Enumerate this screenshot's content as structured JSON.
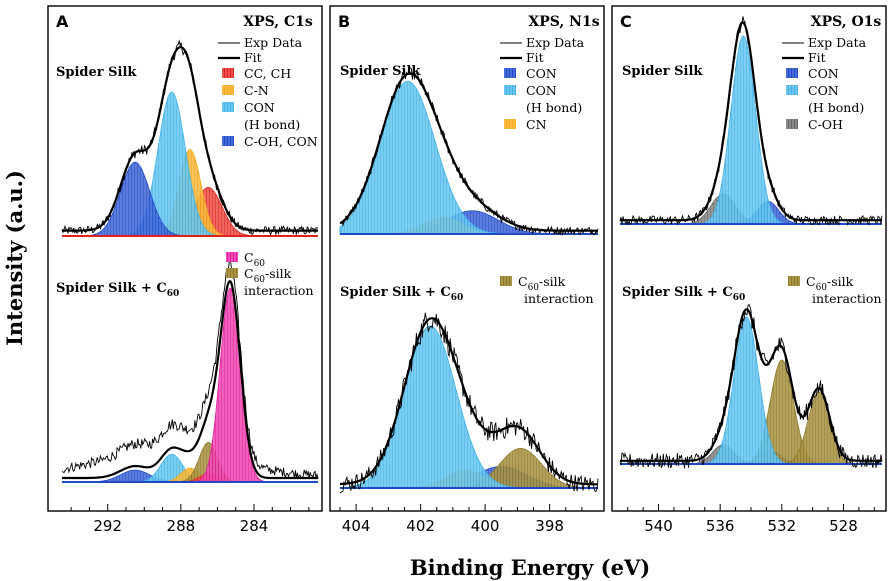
{
  "figure": {
    "y_axis_label": "Intensity (a.u.)",
    "x_axis_label": "Binding Energy (eV)"
  },
  "chart_data": [
    {
      "type": "line",
      "panel_letter": "A",
      "title": "XPS, C1s",
      "xlabel": "Binding Energy (eV)",
      "ylabel": "Intensity (a.u.)",
      "xlim": [
        294.5,
        280.5
      ],
      "x_ticks": [
        292,
        288,
        284
      ],
      "upper": {
        "sample_label": "Spider Silk",
        "baseline": 0.03,
        "fit_components": [
          {
            "name": "CC, CH",
            "center": 286.5,
            "height": 0.27,
            "width": 0.75,
            "color": "#e0221f",
            "hatch": "#ff9a8e"
          },
          {
            "name": "C-N",
            "center": 287.5,
            "height": 0.48,
            "width": 0.6,
            "color": "#f3a81d",
            "hatch": "#ffd87a"
          },
          {
            "name": "CON (H bond)",
            "center": 288.5,
            "height": 0.8,
            "width": 0.75,
            "color": "#41b4e6",
            "hatch": "#a8e2ff"
          },
          {
            "name": "C-OH, CON",
            "center": 290.5,
            "height": 0.41,
            "width": 0.8,
            "color": "#1f49c8",
            "hatch": "#7f9ff0"
          }
        ]
      },
      "lower": {
        "sample_label_prefix": "Spider Silk + C",
        "sample_label_sub": "60",
        "baseline": 0.02,
        "fit_components": [
          {
            "name": "C-OH, CON",
            "center": 290.5,
            "height": 0.06,
            "width": 0.8,
            "color": "#1f49c8",
            "hatch": "#7f9ff0"
          },
          {
            "name": "CON (H bond)",
            "center": 288.5,
            "height": 0.14,
            "width": 0.6,
            "color": "#41b4e6",
            "hatch": "#a8e2ff"
          },
          {
            "name": "C-N",
            "center": 287.5,
            "height": 0.07,
            "width": 0.5,
            "color": "#f3a81d",
            "hatch": "#ffd87a"
          },
          {
            "name": "C60-silk interaction",
            "center": 286.5,
            "height": 0.2,
            "width": 0.5,
            "color": "#8f7a2c",
            "hatch": "#d1bb6a"
          },
          {
            "name": "CC, CH",
            "center": 286.5,
            "height": 0.04,
            "width": 0.5,
            "color": "#e0221f",
            "hatch": "#ff9a8e"
          },
          {
            "name": "C60",
            "center": 285.3,
            "height": 0.98,
            "width": 0.55,
            "color": "#e31f9b",
            "hatch": "#ff8fd8"
          }
        ],
        "exp_tail": {
          "center": 289.0,
          "height": 0.12,
          "width": 4.0
        }
      },
      "legend_upper": [
        "Exp Data",
        "Fit",
        "CC, CH",
        "C-N",
        "CON",
        "(H bond)",
        "C-OH, CON"
      ],
      "legend_lower": [
        "C60",
        "C60-silk",
        "interaction"
      ]
    },
    {
      "type": "line",
      "panel_letter": "B",
      "title": "XPS, N1s",
      "xlabel": "Binding Energy (eV)",
      "ylabel": "Intensity (a.u.)",
      "xlim": [
        404.5,
        396.5
      ],
      "x_ticks": [
        404,
        402,
        400,
        398
      ],
      "upper": {
        "sample_label": "Spider Silk",
        "baseline": 0.02,
        "fit_components": [
          {
            "name": "CON",
            "center": 400.4,
            "height": 0.14,
            "width": 0.8,
            "color": "#1f49c8",
            "hatch": "#7f9ff0"
          },
          {
            "name": "CN",
            "center": 401.3,
            "height": 0.1,
            "width": 0.6,
            "color": "#f3a81d",
            "hatch": "#ffd87a"
          },
          {
            "name": "CON (H bond)",
            "center": 402.4,
            "height": 0.92,
            "width": 0.85,
            "color": "#41b4e6",
            "hatch": "#a8e2ff"
          }
        ]
      },
      "lower": {
        "sample_label_prefix": "Spider Silk + C",
        "sample_label_sub": "60",
        "baseline": 0.02,
        "fit_components": [
          {
            "name": "CON",
            "center": 399.5,
            "height": 0.12,
            "width": 0.8,
            "color": "#1f49c8",
            "hatch": "#7f9ff0"
          },
          {
            "name": "CN",
            "center": 400.6,
            "height": 0.1,
            "width": 0.6,
            "color": "#f3a81d",
            "hatch": "#ffd87a"
          },
          {
            "name": "C60-silk interaction",
            "center": 398.9,
            "height": 0.22,
            "width": 0.65,
            "color": "#8f7a2c",
            "hatch": "#d1bb6a"
          },
          {
            "name": "CON (H bond)",
            "center": 401.7,
            "height": 0.9,
            "width": 0.8,
            "color": "#41b4e6",
            "hatch": "#a8e2ff"
          }
        ]
      },
      "legend_upper": [
        "Exp Data",
        "Fit",
        "CON",
        "CON",
        "(H bond)",
        "CN"
      ],
      "legend_lower": [
        "C60-silk",
        "interaction"
      ]
    },
    {
      "type": "line",
      "panel_letter": "C",
      "title": "XPS, O1s",
      "xlabel": "Binding Energy (eV)",
      "ylabel": "Intensity (a.u.)",
      "xlim": [
        542.5,
        525.5
      ],
      "x_ticks": [
        540,
        536,
        532,
        528
      ],
      "upper": {
        "sample_label": "Spider Silk",
        "baseline": 0.02,
        "fit_components": [
          {
            "name": "C-OH",
            "center": 535.8,
            "height": 0.16,
            "width": 0.8,
            "color": "#666666",
            "hatch": "#bbbbbb"
          },
          {
            "name": "CON",
            "center": 532.9,
            "height": 0.12,
            "width": 0.7,
            "color": "#1f49c8",
            "hatch": "#7f9ff0"
          },
          {
            "name": "CON (H bond)",
            "center": 534.5,
            "height": 1.0,
            "width": 0.8,
            "color": "#41b4e6",
            "hatch": "#a8e2ff"
          }
        ]
      },
      "lower": {
        "sample_label_prefix": "Spider Silk + C",
        "sample_label_sub": "60",
        "baseline": 0.02,
        "fit_components": [
          {
            "name": "C-OH",
            "center": 535.8,
            "height": 0.12,
            "width": 0.7,
            "color": "#666666",
            "hatch": "#bbbbbb"
          },
          {
            "name": "CON",
            "center": 532.8,
            "height": 0.09,
            "width": 0.7,
            "color": "#1f49c8",
            "hatch": "#7f9ff0"
          },
          {
            "name": "C60-silk interaction",
            "center": 532.0,
            "height": 0.65,
            "width": 0.75,
            "color": "#8f7a2c",
            "hatch": "#d1bb6a"
          },
          {
            "name": "C60-silk interaction",
            "center": 529.6,
            "height": 0.45,
            "width": 0.7,
            "color": "#8f7a2c",
            "hatch": "#d1bb6a"
          },
          {
            "name": "CON (H bond)",
            "center": 534.3,
            "height": 0.92,
            "width": 0.8,
            "color": "#41b4e6",
            "hatch": "#a8e2ff"
          }
        ]
      },
      "legend_upper": [
        "Exp Data",
        "Fit",
        "CON",
        "CON",
        "(H bond)",
        "C-OH"
      ],
      "legend_lower": [
        "C60-silk",
        "interaction"
      ]
    }
  ]
}
